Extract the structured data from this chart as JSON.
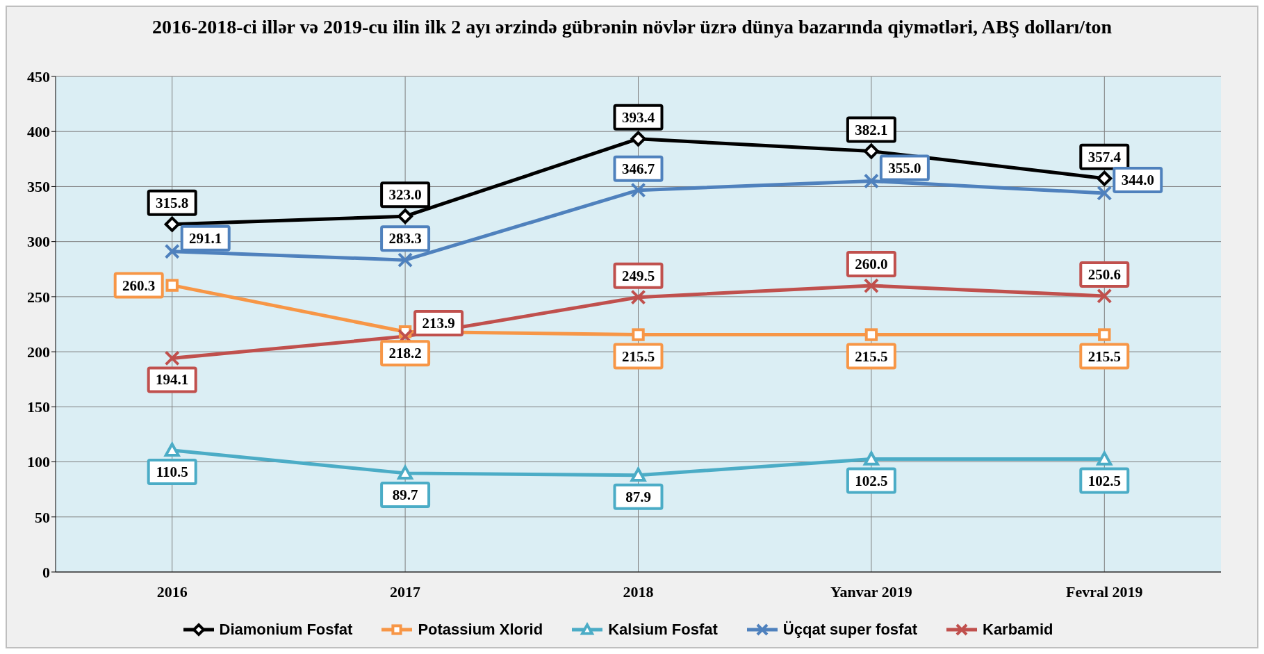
{
  "chart_data": {
    "type": "line",
    "title": "2016-2018-ci illər və 2019-cu ilin ilk 2 ayı ərzində gübrənin növlər üzrə  dünya bazarında qiymətləri, ABŞ dolları/ton",
    "categories": [
      "2016",
      "2017",
      "2018",
      "Yanvar 2019",
      "Fevral 2019"
    ],
    "series": [
      {
        "name": "Diamonium Fosfat",
        "color": "#000000",
        "marker": "diamond",
        "values": [
          315.8,
          323.0,
          393.4,
          382.1,
          357.4
        ],
        "value_labels": [
          "315.8",
          "323.0",
          "393.4",
          "382.1",
          "357.4"
        ]
      },
      {
        "name": "Potassium Xlorid",
        "color": "#f79646",
        "marker": "square",
        "values": [
          260.3,
          218.2,
          215.5,
          215.5,
          215.5
        ],
        "value_labels": [
          "260.3",
          "218.2",
          "215.5",
          "215.5",
          "215.5"
        ]
      },
      {
        "name": "Kalsium Fosfat",
        "color": "#4bacc6",
        "marker": "triangle",
        "values": [
          110.5,
          89.7,
          87.9,
          102.5,
          102.5
        ],
        "value_labels": [
          "110.5",
          "89.7",
          "87.9",
          "102.5",
          "102.5"
        ]
      },
      {
        "name": "Üçqat super fosfat",
        "color": "#4f81bd",
        "marker": "cross",
        "values": [
          291.1,
          283.3,
          346.7,
          355.0,
          344.0
        ],
        "value_labels": [
          "291.1",
          "283.3",
          "346.7",
          "355.0",
          "344.0"
        ]
      },
      {
        "name": "Karbamid",
        "color": "#c0504d",
        "marker": "cross",
        "values": [
          194.1,
          213.9,
          249.5,
          260.0,
          250.6
        ],
        "value_labels": [
          "194.1",
          "213.9",
          "249.5",
          "260.0",
          "250.6"
        ]
      }
    ],
    "ylim": [
      0,
      450
    ],
    "yticks": [
      0,
      50,
      100,
      150,
      200,
      250,
      300,
      350,
      400,
      450
    ],
    "grid": true,
    "legend": "bottom",
    "line_style": "solid"
  }
}
